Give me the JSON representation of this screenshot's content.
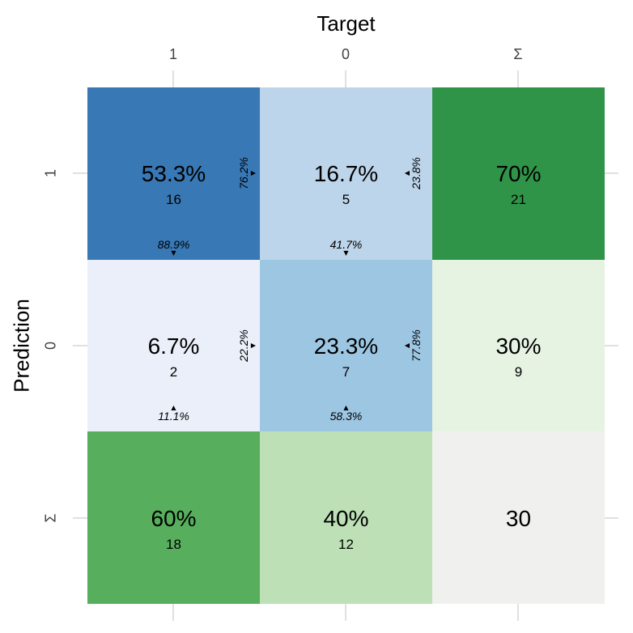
{
  "chart_data": {
    "type": "heatmap",
    "title": "",
    "xlabel": "Target",
    "ylabel": "Prediction",
    "x_categories": [
      "1",
      "0",
      "Σ"
    ],
    "y_categories": [
      "1",
      "0",
      "Σ"
    ],
    "matrix_counts": [
      [
        16,
        5,
        21
      ],
      [
        2,
        7,
        9
      ],
      [
        18,
        12,
        30
      ]
    ],
    "matrix_percent_of_total": [
      [
        "53.3%",
        "16.7%",
        "70%"
      ],
      [
        "6.7%",
        "23.3%",
        "30%"
      ],
      [
        "60%",
        "40%",
        ""
      ]
    ],
    "row_percentages": [
      [
        "76.2%",
        "23.8%"
      ],
      [
        "22.2%",
        "77.8%"
      ]
    ],
    "column_percentages": [
      [
        "88.9%",
        "41.7%"
      ],
      [
        "11.1%",
        "58.3%"
      ]
    ],
    "total": 30,
    "legend_position": "none",
    "grid": false
  },
  "titles": {
    "x": "Target",
    "y": "Prediction"
  },
  "x_ticks": [
    "1",
    "0",
    "Σ"
  ],
  "y_ticks": [
    "1",
    "0",
    "Σ"
  ],
  "icons": {
    "triangle_up": "▲",
    "triangle_down": "▼"
  },
  "colors": {
    "tick": "#E0E0E0",
    "tick_label": "#404040",
    "title_text": "#000000",
    "blue_dark": "#3878B5",
    "blue_light": "#BDD5EB",
    "blue_pale": "#EAEFF9",
    "blue_mid": "#9DC6E3",
    "green_dark": "#2F9348",
    "green_mid": "#57AE5C",
    "green_light": "#BDE0B7",
    "green_pale": "#E6F3E2",
    "gray_total": "#F0F1EF"
  },
  "cells": {
    "r0c0": {
      "main": "53.3%",
      "count": "16",
      "row_pct": "76.2%",
      "col_pct": "88.9%",
      "bg": "#3878B5"
    },
    "r0c1": {
      "main": "16.7%",
      "count": "5",
      "row_pct": "23.8%",
      "col_pct": "41.7%",
      "bg": "#BDD5EB"
    },
    "r0c2": {
      "main": "70%",
      "count": "21",
      "bg": "#2F9348"
    },
    "r1c0": {
      "main": "6.7%",
      "count": "2",
      "row_pct": "22.2%",
      "col_pct": "11.1%",
      "bg": "#EAEFF9"
    },
    "r1c1": {
      "main": "23.3%",
      "count": "7",
      "row_pct": "77.8%",
      "col_pct": "58.3%",
      "bg": "#9DC6E3"
    },
    "r1c2": {
      "main": "30%",
      "count": "9",
      "bg": "#E6F3E2"
    },
    "r2c0": {
      "main": "60%",
      "count": "18",
      "bg": "#57AE5C"
    },
    "r2c1": {
      "main": "40%",
      "count": "12",
      "bg": "#BDE0B7"
    },
    "r2c2": {
      "main": "30",
      "bg": "#F0F1EF"
    }
  }
}
